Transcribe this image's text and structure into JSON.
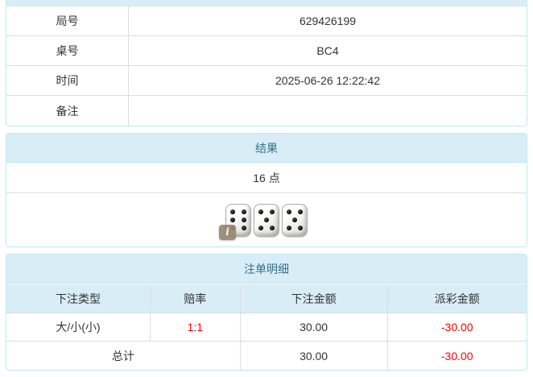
{
  "info_table": {
    "rows": [
      {
        "label": "局号",
        "value": "629426199"
      },
      {
        "label": "桌号",
        "value": "BC4"
      },
      {
        "label": "时间",
        "value": "2025-06-26 12:22:42"
      },
      {
        "label": "备注",
        "value": ""
      }
    ]
  },
  "result_panel": {
    "title": "结果",
    "points": "16 点",
    "dice": [
      6,
      5,
      5
    ],
    "info_icon": "i"
  },
  "bets_panel": {
    "title": "注单明细",
    "columns": [
      "下注类型",
      "赔率",
      "下注金额",
      "派彩金额"
    ],
    "rows": [
      {
        "bet_type": "大/小(小)",
        "odds": "1:1",
        "bet_amount": "30.00",
        "payout": "-30.00"
      }
    ],
    "total": {
      "label": "总计",
      "bet_amount": "30.00",
      "payout": "-30.00"
    }
  },
  "colors": {
    "panel_border": "#bce8f1",
    "heading_bg": "#d9edf7",
    "heading_text": "#31708f",
    "cell_border": "#dddddd",
    "text": "#333333",
    "negative": "#ff0000"
  }
}
